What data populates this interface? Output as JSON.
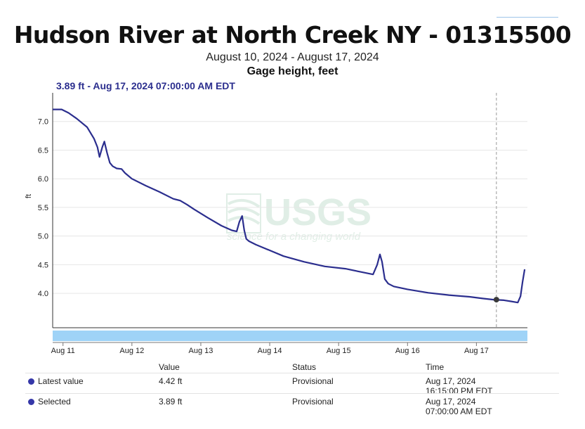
{
  "header": {
    "title": "Hudson River at North Creek NY - 01315500",
    "date_range": "August 10, 2024 - August 17, 2024",
    "parameter": "Gage height, feet",
    "selected_readout": "3.89 ft - Aug 17, 2024 07:00:00 AM EDT"
  },
  "colors": {
    "series": "#2b2e8e",
    "navigator": "#9fd3f7",
    "watermark": "#a9cfb8"
  },
  "watermark": {
    "logo": "USGS",
    "tagline": "science for a changing world"
  },
  "chart_data": {
    "type": "line",
    "title": "Hudson River at North Creek NY - 01315500",
    "subtitle": "August 10, 2024 - August 17, 2024",
    "ylabel": "ft",
    "xlabel": "",
    "x_unit": "days since Aug 11, 2024 00:00",
    "x_ticks": [
      0,
      1,
      2,
      3,
      4,
      5,
      6
    ],
    "x_tick_labels": [
      "Aug 11",
      "Aug 12",
      "Aug 13",
      "Aug 14",
      "Aug 15",
      "Aug 16",
      "Aug 17"
    ],
    "y_ticks": [
      4.0,
      4.5,
      5.0,
      5.5,
      6.0,
      6.5,
      7.0
    ],
    "y_tick_labels": [
      "4.0",
      "4.5",
      "5.0",
      "5.5",
      "6.0",
      "6.5",
      "7.0"
    ],
    "xlim": [
      -0.15,
      6.74
    ],
    "ylim": [
      3.4,
      7.5
    ],
    "grid": true,
    "series": [
      {
        "name": "Gage height",
        "x": [
          -0.15,
          -0.02,
          0.08,
          0.2,
          0.35,
          0.45,
          0.5,
          0.53,
          0.57,
          0.6,
          0.64,
          0.68,
          0.72,
          0.78,
          0.85,
          0.9,
          1.0,
          1.2,
          1.4,
          1.6,
          1.7,
          1.8,
          1.9,
          2.1,
          2.3,
          2.45,
          2.52,
          2.56,
          2.6,
          2.63,
          2.66,
          2.7,
          2.8,
          3.0,
          3.2,
          3.5,
          3.8,
          4.1,
          4.3,
          4.5,
          4.56,
          4.6,
          4.63,
          4.67,
          4.72,
          4.8,
          5.0,
          5.3,
          5.6,
          5.9,
          6.1,
          6.25,
          6.4,
          6.5,
          6.6,
          6.64,
          6.67,
          6.7
        ],
        "y": [
          7.21,
          7.21,
          7.15,
          7.05,
          6.9,
          6.7,
          6.55,
          6.38,
          6.55,
          6.65,
          6.45,
          6.28,
          6.22,
          6.18,
          6.17,
          6.1,
          6.0,
          5.88,
          5.77,
          5.65,
          5.62,
          5.55,
          5.47,
          5.32,
          5.18,
          5.1,
          5.08,
          5.25,
          5.35,
          5.1,
          4.95,
          4.91,
          4.85,
          4.75,
          4.65,
          4.55,
          4.47,
          4.43,
          4.38,
          4.33,
          4.5,
          4.68,
          4.55,
          4.25,
          4.17,
          4.12,
          4.07,
          4.01,
          3.97,
          3.94,
          3.91,
          3.89,
          3.88,
          3.86,
          3.84,
          3.95,
          4.2,
          4.42
        ]
      }
    ],
    "selected_point": {
      "x": 6.29,
      "y": 3.89
    },
    "navigator_range": [
      -0.15,
      6.74
    ]
  },
  "summary": {
    "headers": {
      "value": "Value",
      "status": "Status",
      "time": "Time"
    },
    "rows": [
      {
        "label": "Latest value",
        "value": "4.42 ft",
        "status": "Provisional",
        "time_line1": "Aug 17, 2024",
        "time_line2": "16:15:00 PM EDT"
      },
      {
        "label": "Selected",
        "value": "3.89 ft",
        "status": "Provisional",
        "time_line1": "Aug 17, 2024",
        "time_line2": "07:00:00 AM EDT"
      }
    ]
  }
}
